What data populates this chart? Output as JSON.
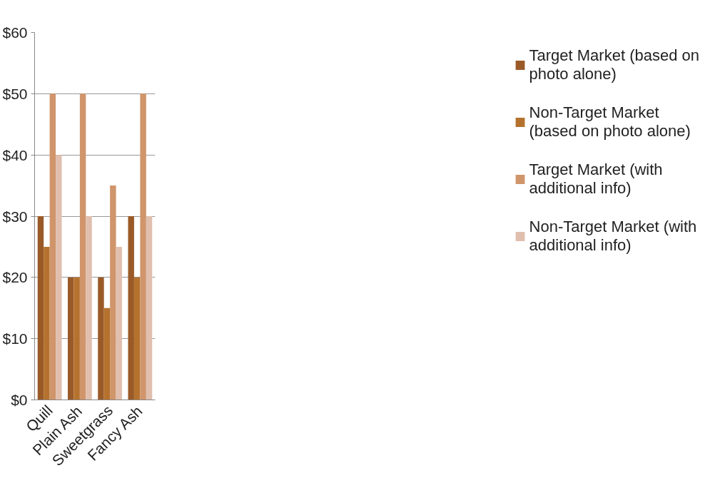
{
  "chart_data": {
    "type": "bar",
    "categories": [
      "Quill",
      "Plain Ash",
      "Sweetgrass",
      "Fancy Ash"
    ],
    "series": [
      {
        "name": "Target Market (based on photo alone)",
        "color": "#9a5a28",
        "values": [
          30,
          20,
          20,
          30
        ]
      },
      {
        "name": "Non-Target Market (based on photo alone)",
        "color": "#b5722e",
        "values": [
          25,
          20,
          15,
          20
        ]
      },
      {
        "name": "Target Market (with additional info)",
        "color": "#d0956b",
        "values": [
          50,
          50,
          35,
          50
        ]
      },
      {
        "name": "Non-Target Market (with additional info)",
        "color": "#e0bfae",
        "values": [
          40,
          30,
          25,
          30
        ]
      }
    ],
    "ylim": [
      0,
      60
    ],
    "yticks": [
      {
        "value": 0,
        "label": "$0"
      },
      {
        "value": 10,
        "label": "$10"
      },
      {
        "value": 20,
        "label": "$20"
      },
      {
        "value": 30,
        "label": "$30"
      },
      {
        "value": 40,
        "label": "$40"
      },
      {
        "value": 50,
        "label": "$50"
      },
      {
        "value": 60,
        "label": "$60"
      }
    ],
    "grid": "y",
    "legend": "right"
  }
}
